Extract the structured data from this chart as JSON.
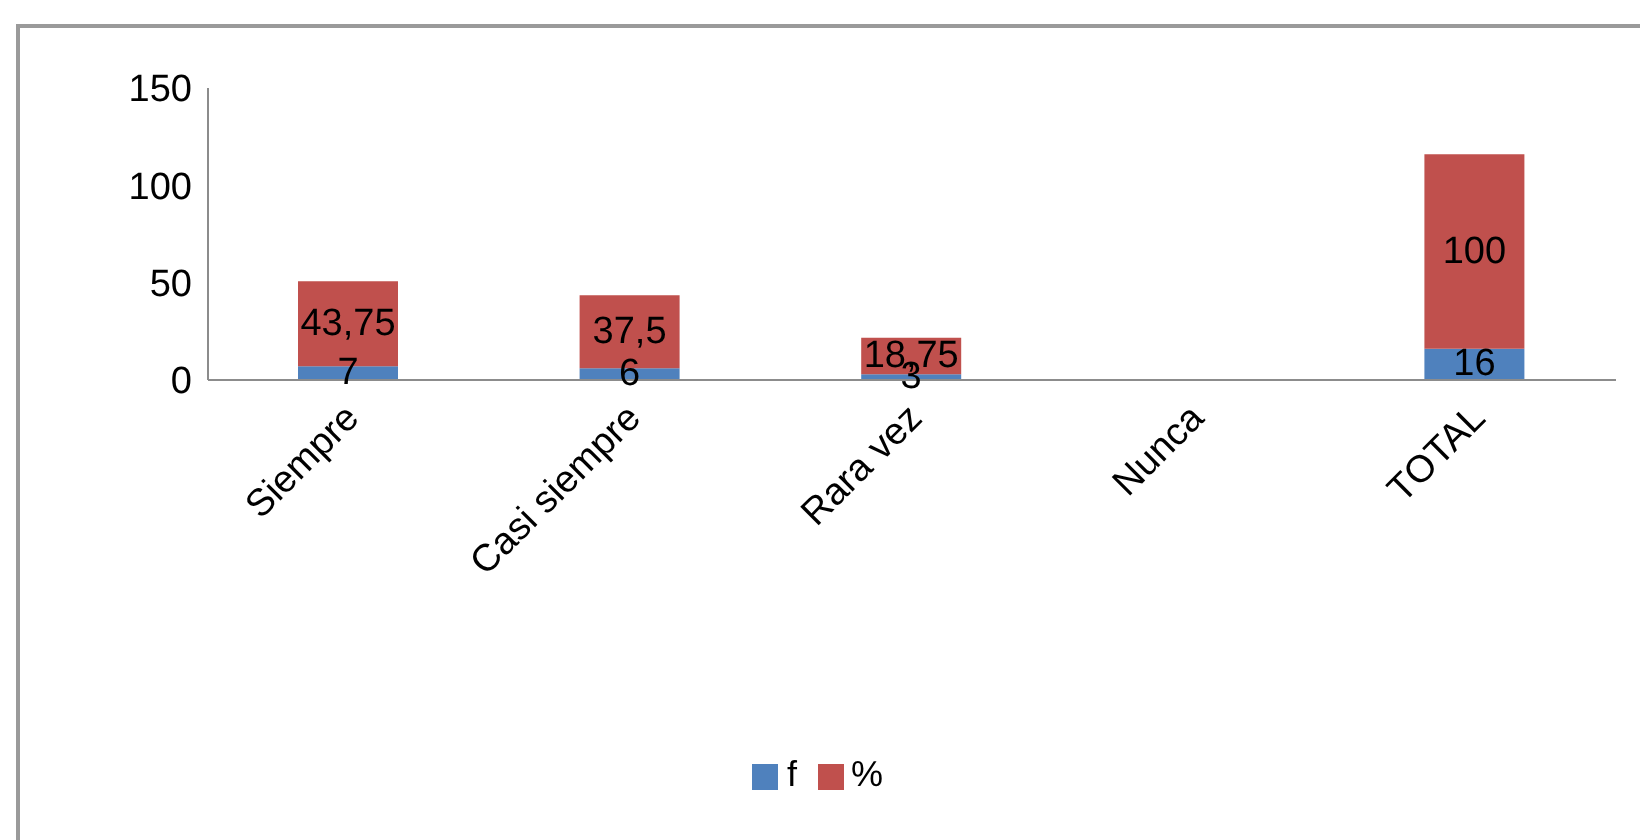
{
  "chart_data": {
    "type": "bar",
    "categories": [
      "Siempre",
      "Casi siempre",
      "Rara vez",
      "Nunca",
      "TOTAL"
    ],
    "series": [
      {
        "name": "f",
        "color": "#4f81bd",
        "values": [
          7,
          6,
          3,
          null,
          16
        ],
        "value_labels": [
          "7",
          "6",
          "3",
          null,
          "16"
        ]
      },
      {
        "name": "%",
        "color": "#c0504d",
        "values": [
          43.75,
          37.5,
          18.75,
          null,
          100
        ],
        "value_labels": [
          "43,75",
          "37,5",
          "18,75",
          null,
          "100"
        ]
      }
    ],
    "stacked": true,
    "ylim": [
      0,
      150
    ],
    "yticks": [
      0,
      50,
      100,
      150
    ],
    "legend": "bottom"
  }
}
